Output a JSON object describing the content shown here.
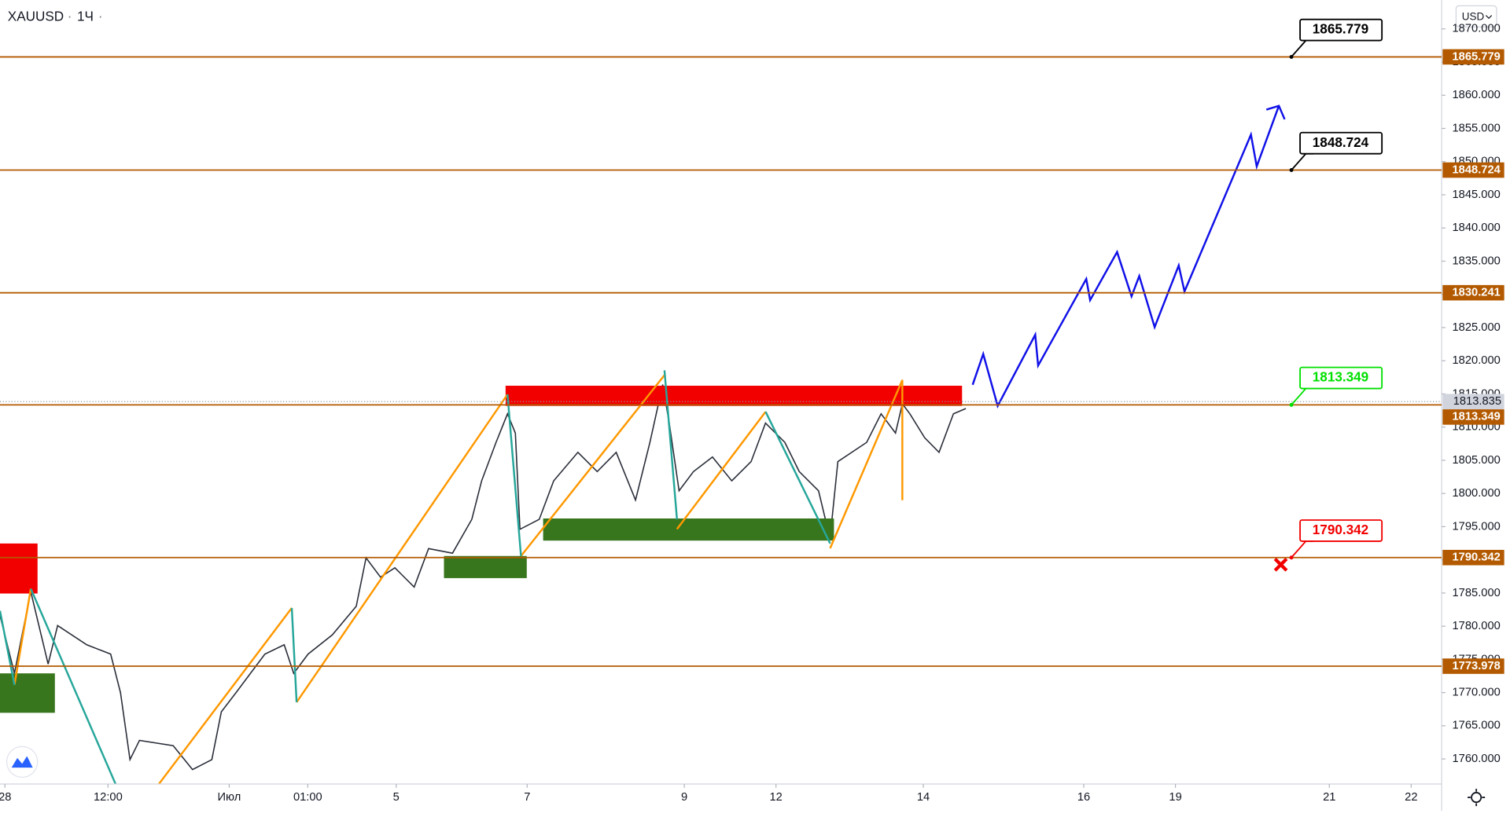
{
  "header": {
    "symbol": "XAUUSD",
    "interval": "1Ч"
  },
  "currency": "USD",
  "chart_data": {
    "type": "line",
    "color": "#2a2e39",
    "x": [
      0,
      4.4,
      9.4,
      14.7,
      17.6,
      26.5,
      33.8,
      36.8,
      39.7,
      42.6,
      52.9,
      58.8,
      64.7,
      67.6,
      72.1,
      76.5,
      80.9,
      86.8,
      89.7,
      94.1,
      101.5,
      108.8,
      111.8,
      116.2,
      120.6,
      126.5,
      130.9,
      138.2,
      144.1,
      147.1,
      151.5,
      155,
      157.4,
      158.8,
      164.7,
      169.1,
      176.5,
      182.4,
      188.2,
      194.1,
      198.5,
      202.4,
      204.4,
      207.4,
      211.8,
      217.6,
      223.5,
      229.4,
      233.8,
      239.7,
      244.1,
      250,
      253.5,
      255.9,
      264.7,
      269.1,
      273.5,
      275.6,
      277.9,
      282.4,
      286.8,
      291.2,
      295
    ],
    "values": [
      1781.6,
      1772.9,
      1785.2,
      1774.3,
      1780.1,
      1777.2,
      1775.8,
      1770.0,
      1759.9,
      1762.8,
      1762.0,
      1758.4,
      1759.9,
      1767.1,
      1770.0,
      1772.9,
      1775.8,
      1777.2,
      1772.9,
      1775.8,
      1778.7,
      1783.0,
      1790.3,
      1787.4,
      1788.8,
      1785.9,
      1791.7,
      1791.0,
      1796.1,
      1801.9,
      1807.7,
      1812.0,
      1809.1,
      1794.6,
      1796.1,
      1801.9,
      1806.2,
      1803.3,
      1806.2,
      1799.0,
      1807.7,
      1816.4,
      1810.6,
      1800.4,
      1803.3,
      1805.5,
      1801.9,
      1804.8,
      1810.6,
      1807.7,
      1803.3,
      1800.4,
      1793.2,
      1804.8,
      1807.7,
      1812.0,
      1809.1,
      1813.5,
      1812.0,
      1808.4,
      1806.2,
      1812.0,
      1812.8
    ],
    "xlim": [
      0,
      440.3
    ],
    "xticks": [
      {
        "value": 1.5,
        "label": "28"
      },
      {
        "value": 33,
        "label": "12:00"
      },
      {
        "value": 70,
        "label": "Июл"
      },
      {
        "value": 94,
        "label": "01:00"
      },
      {
        "value": 121,
        "label": "5"
      },
      {
        "value": 161,
        "label": "7"
      },
      {
        "value": 209,
        "label": "9"
      },
      {
        "value": 237,
        "label": "12"
      },
      {
        "value": 282,
        "label": "14"
      },
      {
        "value": 331,
        "label": "16"
      },
      {
        "value": 359,
        "label": "19"
      },
      {
        "value": 406,
        "label": "21"
      },
      {
        "value": 431,
        "label": "22"
      }
    ],
    "ylim": [
      1756.23,
      1874.35
    ],
    "yticks": [
      {
        "value": 1760,
        "label": "1760.000"
      },
      {
        "value": 1765,
        "label": "1765.000"
      },
      {
        "value": 1770,
        "label": "1770.000"
      },
      {
        "value": 1775,
        "label": "1775.000"
      },
      {
        "value": 1780,
        "label": "1780.000"
      },
      {
        "value": 1785,
        "label": "1785.000"
      },
      {
        "value": 1790,
        "label": "1790.000"
      },
      {
        "value": 1795,
        "label": "1795.000"
      },
      {
        "value": 1800,
        "label": "1800.000"
      },
      {
        "value": 1805,
        "label": "1805.000"
      },
      {
        "value": 1810,
        "label": "1810.000"
      },
      {
        "value": 1815,
        "label": "1815.000"
      },
      {
        "value": 1820,
        "label": "1820.000"
      },
      {
        "value": 1825,
        "label": "1825.000"
      },
      {
        "value": 1830,
        "label": "1830.000"
      },
      {
        "value": 1835,
        "label": "1835.000"
      },
      {
        "value": 1840,
        "label": "1840.000"
      },
      {
        "value": 1845,
        "label": "1845.000"
      },
      {
        "value": 1850,
        "label": "1850.000"
      },
      {
        "value": 1855,
        "label": "1855.000"
      },
      {
        "value": 1860,
        "label": "1860.000"
      },
      {
        "value": 1865,
        "label": "1865.000"
      },
      {
        "value": 1870,
        "label": "1870.000"
      }
    ],
    "level_color": "#b35a00",
    "levels": [
      {
        "value": 1865.779,
        "callout_color": "#000000"
      },
      {
        "value": 1848.724,
        "callout_color": "#000000"
      },
      {
        "value": 1830.241
      },
      {
        "value": 1813.349,
        "callout_color": "#00e000"
      },
      {
        "value": 1790.342,
        "callout_color": "#f20000"
      },
      {
        "value": 1773.978
      }
    ],
    "last_price": 1813.835
  }
}
